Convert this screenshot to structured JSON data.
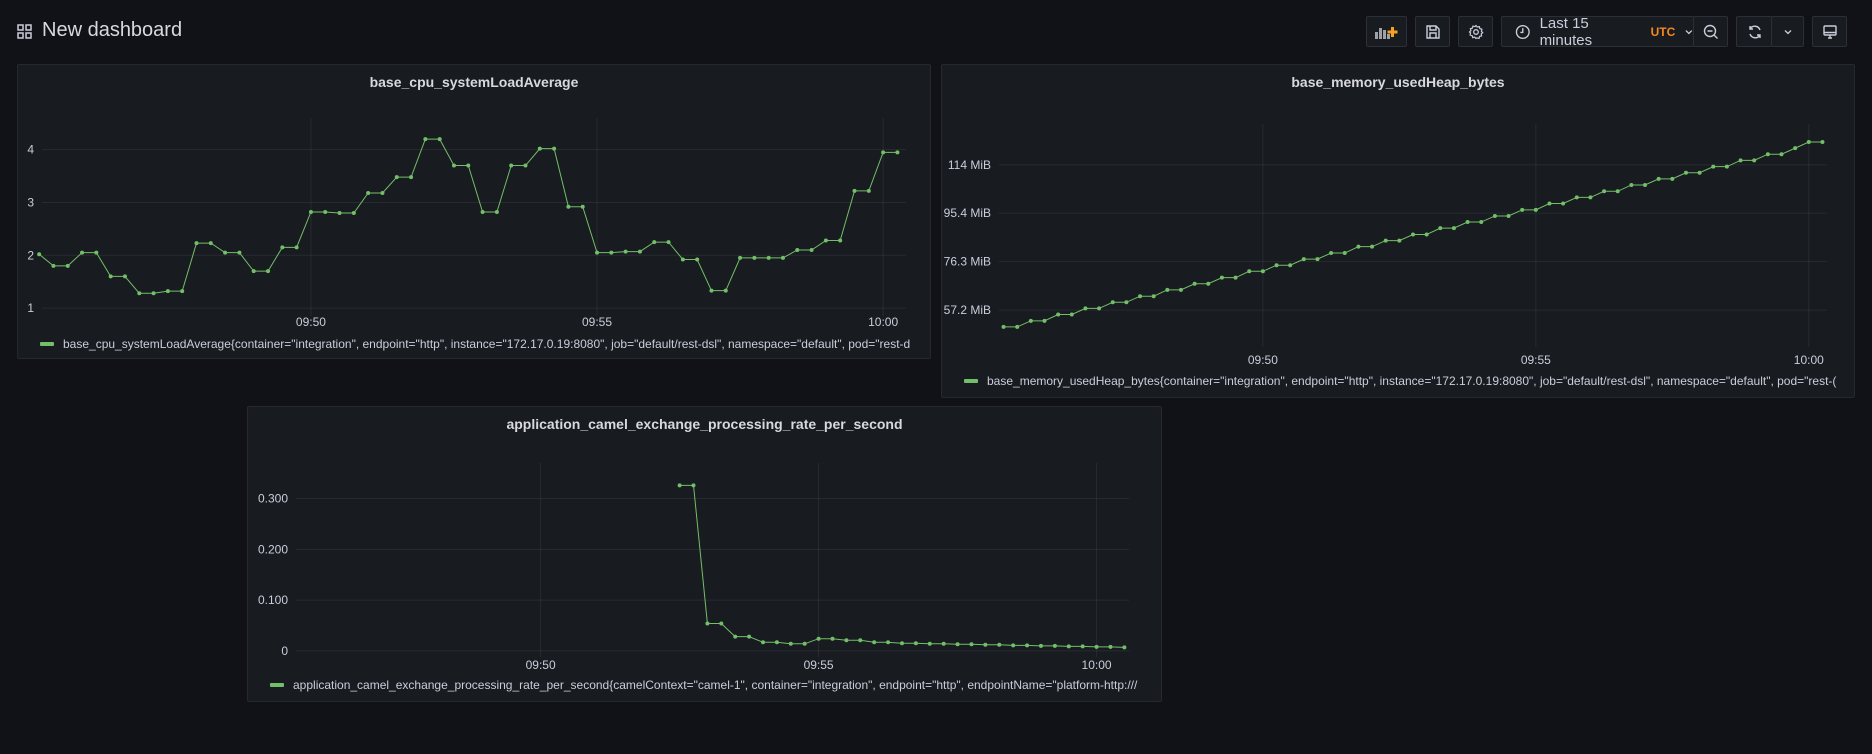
{
  "header": {
    "title": "New dashboard",
    "time_picker": {
      "label": "Last 15 minutes",
      "timezone": "UTC"
    },
    "icons": [
      "grid-icon",
      "add-panel-icon",
      "save-icon",
      "gear-icon",
      "clock-icon",
      "chevron-down-icon",
      "zoom-out-icon",
      "refresh-icon",
      "chevron-down-icon",
      "tv-icon"
    ]
  },
  "colors": {
    "background": "#111217",
    "panel": "#181b1f",
    "series": "#73bf69",
    "accent": "#f5881f"
  },
  "panels": [
    {
      "title": "base_cpu_systemLoadAverage",
      "legend": "base_cpu_systemLoadAverage{container=\"integration\", endpoint=\"http\", instance=\"172.17.0.19:8080\", job=\"default/rest-dsl\", namespace=\"default\", pod=\"rest-d"
    },
    {
      "title": "base_memory_usedHeap_bytes",
      "legend": "base_memory_usedHeap_bytes{container=\"integration\", endpoint=\"http\", instance=\"172.17.0.19:8080\", job=\"default/rest-dsl\", namespace=\"default\", pod=\"rest-("
    },
    {
      "title": "application_camel_exchange_processing_rate_per_second",
      "legend": "application_camel_exchange_processing_rate_per_second{camelContext=\"camel-1\", container=\"integration\", endpoint=\"http\", endpointName=\"platform-http:///"
    }
  ],
  "chart_data": [
    {
      "type": "line",
      "title": "base_cpu_systemLoadAverage",
      "grid": true,
      "legend_placement": "bottom",
      "xlim": [
        "09:45:18",
        "10:00:24"
      ],
      "ylim": [
        0.85,
        4.6
      ],
      "xticks": [
        "09:50",
        "09:55",
        "10:00"
      ],
      "yticks": [
        {
          "value": 1,
          "label": "1"
        },
        {
          "value": 2,
          "label": "2"
        },
        {
          "value": 3,
          "label": "3"
        },
        {
          "value": 4,
          "label": "4"
        }
      ],
      "series": [
        {
          "name": "base_cpu_systemLoadAverage{container=\"integration\", endpoint=\"http\", instance=\"172.17.0.19:8080\", job=\"default/rest-dsl\", namespace=\"default\", pod=\"rest-d",
          "x": [
            "09:45:15",
            "09:45:30",
            "09:45:45",
            "09:46:00",
            "09:46:15",
            "09:46:30",
            "09:46:45",
            "09:47:00",
            "09:47:15",
            "09:47:30",
            "09:47:45",
            "09:48:00",
            "09:48:15",
            "09:48:30",
            "09:48:45",
            "09:49:00",
            "09:49:15",
            "09:49:30",
            "09:49:45",
            "09:50:00",
            "09:50:15",
            "09:50:30",
            "09:50:45",
            "09:51:00",
            "09:51:15",
            "09:51:30",
            "09:51:45",
            "09:52:00",
            "09:52:15",
            "09:52:30",
            "09:52:45",
            "09:53:00",
            "09:53:15",
            "09:53:30",
            "09:53:45",
            "09:54:00",
            "09:54:15",
            "09:54:30",
            "09:54:45",
            "09:55:00",
            "09:55:15",
            "09:55:30",
            "09:55:45",
            "09:56:00",
            "09:56:15",
            "09:56:30",
            "09:56:45",
            "09:57:00",
            "09:57:15",
            "09:57:30",
            "09:57:45",
            "09:58:00",
            "09:58:15",
            "09:58:30",
            "09:58:45",
            "09:59:00",
            "09:59:15",
            "09:59:30",
            "09:59:45",
            "10:00:00",
            "10:00:15"
          ],
          "values": [
            2.02,
            1.8,
            1.8,
            2.05,
            2.05,
            1.6,
            1.6,
            1.28,
            1.28,
            1.32,
            1.32,
            2.23,
            2.23,
            2.05,
            2.05,
            1.7,
            1.7,
            2.15,
            2.15,
            2.82,
            2.82,
            2.8,
            2.8,
            3.18,
            3.18,
            3.48,
            3.48,
            4.2,
            4.2,
            3.7,
            3.7,
            2.82,
            2.82,
            3.7,
            3.7,
            4.02,
            4.02,
            2.92,
            2.92,
            2.05,
            2.05,
            2.07,
            2.07,
            2.25,
            2.25,
            1.92,
            1.92,
            1.33,
            1.33,
            1.95,
            1.95,
            1.95,
            1.95,
            2.1,
            2.1,
            2.28,
            2.28,
            3.22,
            3.22,
            3.95,
            3.95
          ]
        }
      ]
    },
    {
      "type": "line",
      "title": "base_memory_usedHeap_bytes",
      "grid": true,
      "legend_placement": "bottom",
      "xlim": [
        "09:45:10",
        "10:00:20"
      ],
      "ylim": [
        42.7,
        130.5
      ],
      "xticks": [
        "09:50",
        "09:55",
        "10:00"
      ],
      "yticks": [
        {
          "value": 57.2,
          "label": "57.2 MiB"
        },
        {
          "value": 76.3,
          "label": "76.3 MiB"
        },
        {
          "value": 95.4,
          "label": "95.4 MiB"
        },
        {
          "value": 114.4,
          "label": "114 MiB"
        }
      ],
      "series": [
        {
          "name": "base_memory_usedHeap_bytes{container=\"integration\", endpoint=\"http\", instance=\"172.17.0.19:8080\", job=\"default/rest-dsl\", namespace=\"default\", pod=\"rest-(",
          "x": [
            "09:45:15",
            "09:45:30",
            "09:45:45",
            "09:46:00",
            "09:46:15",
            "09:46:30",
            "09:46:45",
            "09:47:00",
            "09:47:15",
            "09:47:30",
            "09:47:45",
            "09:48:00",
            "09:48:15",
            "09:48:30",
            "09:48:45",
            "09:49:00",
            "09:49:15",
            "09:49:30",
            "09:49:45",
            "09:50:00",
            "09:50:15",
            "09:50:30",
            "09:50:45",
            "09:51:00",
            "09:51:15",
            "09:51:30",
            "09:51:45",
            "09:52:00",
            "09:52:15",
            "09:52:30",
            "09:52:45",
            "09:53:00",
            "09:53:15",
            "09:53:30",
            "09:53:45",
            "09:54:00",
            "09:54:15",
            "09:54:30",
            "09:54:45",
            "09:55:00",
            "09:55:15",
            "09:55:30",
            "09:55:45",
            "09:56:00",
            "09:56:15",
            "09:56:30",
            "09:56:45",
            "09:57:00",
            "09:57:15",
            "09:57:30",
            "09:57:45",
            "09:58:00",
            "09:58:15",
            "09:58:30",
            "09:58:45",
            "09:59:00",
            "09:59:15",
            "09:59:30",
            "09:59:45",
            "10:00:00",
            "10:00:15"
          ],
          "values": [
            50.6,
            50.6,
            53.0,
            53.0,
            55.5,
            55.5,
            57.9,
            57.9,
            60.3,
            60.3,
            62.7,
            62.7,
            65.2,
            65.2,
            67.6,
            67.6,
            70.0,
            70.0,
            72.5,
            72.5,
            74.9,
            74.9,
            77.3,
            77.3,
            79.7,
            79.7,
            82.2,
            82.2,
            84.6,
            84.6,
            87.0,
            87.0,
            89.5,
            89.5,
            91.9,
            91.9,
            94.3,
            94.3,
            96.7,
            96.7,
            99.2,
            99.2,
            101.6,
            101.6,
            104.0,
            104.0,
            106.5,
            106.5,
            108.9,
            108.9,
            111.3,
            111.3,
            113.7,
            113.7,
            116.2,
            116.2,
            118.6,
            118.6,
            121.0,
            123.4,
            123.4
          ]
        }
      ]
    },
    {
      "type": "line",
      "title": "application_camel_exchange_processing_rate_per_second",
      "grid": true,
      "legend_placement": "bottom",
      "xlim": [
        "09:45:36",
        "10:00:35"
      ],
      "ylim": [
        -0.012,
        0.37
      ],
      "xticks": [
        "09:50",
        "09:55",
        "10:00"
      ],
      "yticks": [
        {
          "value": 0,
          "label": "0"
        },
        {
          "value": 0.1,
          "label": "0.100"
        },
        {
          "value": 0.2,
          "label": "0.200"
        },
        {
          "value": 0.3,
          "label": "0.300"
        }
      ],
      "series": [
        {
          "name": "application_camel_exchange_processing_rate_per_second{camelContext=\"camel-1\", container=\"integration\", endpoint=\"http\", endpointName=\"platform-http:///",
          "x": [
            "09:52:30",
            "09:52:45",
            "09:53:00",
            "09:53:15",
            "09:53:30",
            "09:53:45",
            "09:54:00",
            "09:54:15",
            "09:54:30",
            "09:54:45",
            "09:55:00",
            "09:55:15",
            "09:55:30",
            "09:55:45",
            "09:56:00",
            "09:56:15",
            "09:56:30",
            "09:56:45",
            "09:57:00",
            "09:57:15",
            "09:57:30",
            "09:57:45",
            "09:58:00",
            "09:58:15",
            "09:58:30",
            "09:58:45",
            "09:59:00",
            "09:59:15",
            "09:59:30",
            "09:59:45",
            "10:00:00",
            "10:00:15",
            "10:00:30"
          ],
          "values": [
            0.326,
            0.326,
            0.054,
            0.054,
            0.028,
            0.028,
            0.017,
            0.017,
            0.014,
            0.014,
            0.024,
            0.024,
            0.021,
            0.021,
            0.017,
            0.017,
            0.015,
            0.015,
            0.014,
            0.014,
            0.013,
            0.013,
            0.012,
            0.012,
            0.011,
            0.011,
            0.01,
            0.01,
            0.009,
            0.009,
            0.008,
            0.008,
            0.007
          ]
        }
      ]
    }
  ]
}
